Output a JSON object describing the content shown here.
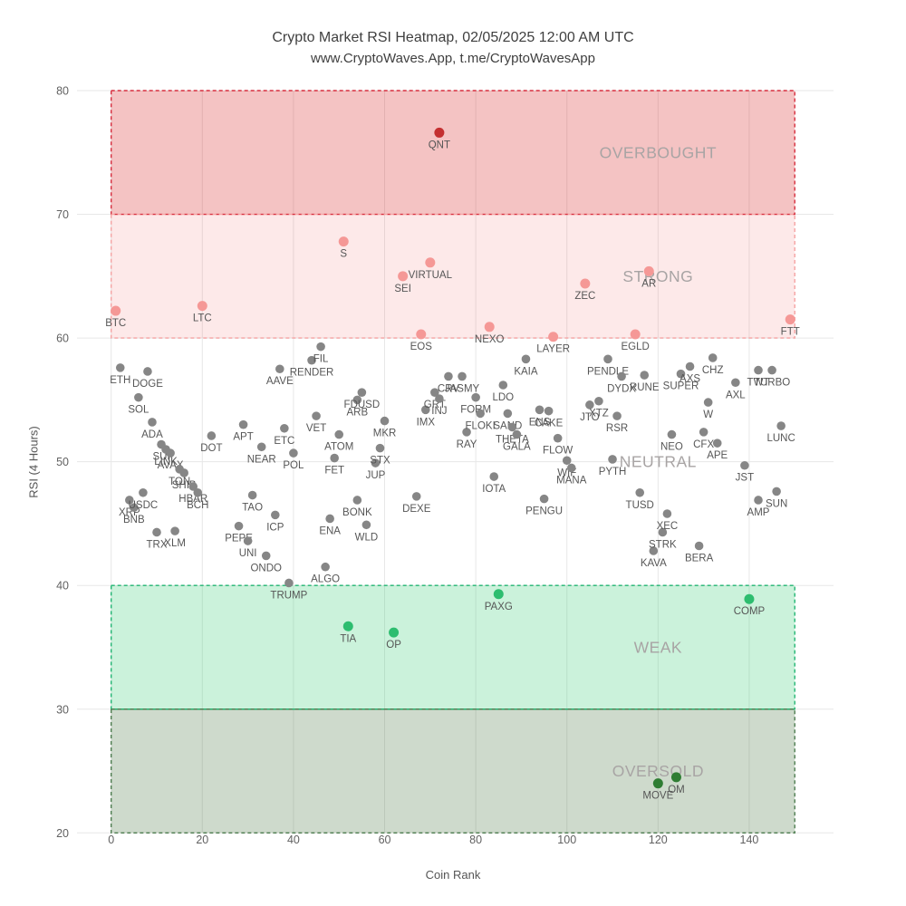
{
  "header": {
    "title": "Crypto Market RSI Heatmap, 02/05/2025 12:00 AM UTC",
    "subtitle": "www.CryptoWaves.App, t.me/CryptoWavesApp"
  },
  "chart_data": {
    "type": "scatter",
    "xlabel": "Coin Rank",
    "ylabel": "RSI (4 Hours)",
    "x_ticks": [
      0,
      20,
      40,
      60,
      80,
      100,
      120,
      140
    ],
    "y_ticks": [
      20,
      30,
      40,
      50,
      60,
      70,
      80
    ],
    "xlim": [
      -7.5,
      158.5
    ],
    "ylim": [
      18.7,
      80.4
    ],
    "grid": true,
    "grid_color": "#e7e7e7",
    "tick_color": "#616161",
    "point_label_color": "#565656",
    "zone_label_color": "#a8a4a4",
    "band_rank_range": [
      0,
      150
    ],
    "zone_label_rank": 120,
    "zones": [
      {
        "name": "overbought",
        "label": "OVERBOUGHT",
        "rsi_min": 70,
        "rsi_max": 80,
        "fill": "rgba(214,39,40,0.28)",
        "border": "#d62e3e",
        "point_color": "#c42f30"
      },
      {
        "name": "strong",
        "label": "STRONG",
        "rsi_min": 60,
        "rsi_max": 70,
        "fill": "rgba(240,100,100,0.14)",
        "border": "#f5a3a3",
        "point_color": "#f59896"
      },
      {
        "name": "neutral",
        "label": "NEUTRAL",
        "rsi_min": 40,
        "rsi_max": 60,
        "fill": "none",
        "border": "none",
        "point_color": "#868686"
      },
      {
        "name": "weak",
        "label": "WEAK",
        "rsi_min": 30,
        "rsi_max": 40,
        "fill": "rgba(46,204,113,0.25)",
        "border": "#22b573",
        "point_color": "#2dbd6f"
      },
      {
        "name": "oversold",
        "label": "OVERSOLD",
        "rsi_min": 20,
        "rsi_max": 30,
        "fill": "rgba(58,106,52,0.25)",
        "border": "#4e7d50",
        "point_color": "#2f7d33"
      }
    ],
    "points": [
      {
        "s": "BTC",
        "rank": 1,
        "rsi": 62.2
      },
      {
        "s": "ETH",
        "rank": 2,
        "rsi": 57.6
      },
      {
        "s": "XRP",
        "rank": 4,
        "rsi": 46.9
      },
      {
        "s": "BNB",
        "rank": 5,
        "rsi": 46.3
      },
      {
        "s": "SOL",
        "rank": 6,
        "rsi": 55.2
      },
      {
        "s": "USDC",
        "rank": 7,
        "rsi": 47.5
      },
      {
        "s": "DOGE",
        "rank": 8,
        "rsi": 57.3
      },
      {
        "s": "ADA",
        "rank": 9,
        "rsi": 53.2
      },
      {
        "s": "TRX",
        "rank": 10,
        "rsi": 44.3
      },
      {
        "s": "SUI",
        "rank": 11,
        "rsi": 51.4
      },
      {
        "s": "LINK",
        "rank": 12,
        "rsi": 51.0
      },
      {
        "s": "AVAX",
        "rank": 13,
        "rsi": 50.7
      },
      {
        "s": "XLM",
        "rank": 14,
        "rsi": 44.4
      },
      {
        "s": "TON",
        "rank": 15,
        "rsi": 49.4
      },
      {
        "s": "SHIB",
        "rank": 16,
        "rsi": 49.1
      },
      {
        "s": "HBAR",
        "rank": 18,
        "rsi": 48.0
      },
      {
        "s": "BCH",
        "rank": 19,
        "rsi": 47.5
      },
      {
        "s": "LTC",
        "rank": 20,
        "rsi": 62.6
      },
      {
        "s": "DOT",
        "rank": 22,
        "rsi": 52.1
      },
      {
        "s": "PEPE",
        "rank": 28,
        "rsi": 44.8
      },
      {
        "s": "APT",
        "rank": 29,
        "rsi": 53.0
      },
      {
        "s": "UNI",
        "rank": 30,
        "rsi": 43.6
      },
      {
        "s": "TAO",
        "rank": 31,
        "rsi": 47.3
      },
      {
        "s": "NEAR",
        "rank": 33,
        "rsi": 51.2
      },
      {
        "s": "ONDO",
        "rank": 34,
        "rsi": 42.4
      },
      {
        "s": "ICP",
        "rank": 36,
        "rsi": 45.7
      },
      {
        "s": "AAVE",
        "rank": 37,
        "rsi": 57.5
      },
      {
        "s": "ETC",
        "rank": 38,
        "rsi": 52.7
      },
      {
        "s": "TRUMP",
        "rank": 39,
        "rsi": 40.2
      },
      {
        "s": "POL",
        "rank": 40,
        "rsi": 50.7
      },
      {
        "s": "RENDER",
        "rank": 44,
        "rsi": 58.2
      },
      {
        "s": "VET",
        "rank": 45,
        "rsi": 53.7
      },
      {
        "s": "FIL",
        "rank": 46,
        "rsi": 59.3
      },
      {
        "s": "ALGO",
        "rank": 47,
        "rsi": 41.5
      },
      {
        "s": "ENA",
        "rank": 48,
        "rsi": 45.4
      },
      {
        "s": "FET",
        "rank": 49,
        "rsi": 50.3
      },
      {
        "s": "ATOM",
        "rank": 50,
        "rsi": 52.2
      },
      {
        "s": "S",
        "rank": 51,
        "rsi": 67.8
      },
      {
        "s": "TIA",
        "rank": 52,
        "rsi": 36.7
      },
      {
        "s": "ARB",
        "rank": 54,
        "rsi": 55.0
      },
      {
        "s": "BONK",
        "rank": 54,
        "rsi": 46.9
      },
      {
        "s": "FDUSD",
        "rank": 55,
        "rsi": 55.6
      },
      {
        "s": "WLD",
        "rank": 56,
        "rsi": 44.9
      },
      {
        "s": "JUP",
        "rank": 58,
        "rsi": 49.9
      },
      {
        "s": "STX",
        "rank": 59,
        "rsi": 51.1
      },
      {
        "s": "MKR",
        "rank": 60,
        "rsi": 53.3
      },
      {
        "s": "OP",
        "rank": 62,
        "rsi": 36.2
      },
      {
        "s": "SEI",
        "rank": 64,
        "rsi": 65.0
      },
      {
        "s": "DEXE",
        "rank": 67,
        "rsi": 47.2
      },
      {
        "s": "EOS",
        "rank": 68,
        "rsi": 60.3
      },
      {
        "s": "IMX",
        "rank": 69,
        "rsi": 54.2
      },
      {
        "s": "VIRTUAL",
        "rank": 70,
        "rsi": 66.1
      },
      {
        "s": "GRT",
        "rank": 71,
        "rsi": 55.6
      },
      {
        "s": "QNT",
        "rank": 72,
        "rsi": 76.6
      },
      {
        "s": "INJ",
        "rank": 72,
        "rsi": 55.1
      },
      {
        "s": "CRV",
        "rank": 74,
        "rsi": 56.9
      },
      {
        "s": "JASMY",
        "rank": 77,
        "rsi": 56.9
      },
      {
        "s": "RAY",
        "rank": 78,
        "rsi": 52.4
      },
      {
        "s": "FORM",
        "rank": 80,
        "rsi": 55.2
      },
      {
        "s": "FLOKI",
        "rank": 81,
        "rsi": 53.9
      },
      {
        "s": "NEXO",
        "rank": 83,
        "rsi": 60.9
      },
      {
        "s": "IOTA",
        "rank": 84,
        "rsi": 48.8
      },
      {
        "s": "PAXG",
        "rank": 85,
        "rsi": 39.3
      },
      {
        "s": "LDO",
        "rank": 86,
        "rsi": 56.2
      },
      {
        "s": "SAND",
        "rank": 87,
        "rsi": 53.9
      },
      {
        "s": "THETA",
        "rank": 88,
        "rsi": 52.8
      },
      {
        "s": "GALA",
        "rank": 89,
        "rsi": 52.2
      },
      {
        "s": "KAIA",
        "rank": 91,
        "rsi": 58.3
      },
      {
        "s": "ENS",
        "rank": 94,
        "rsi": 54.2
      },
      {
        "s": "PENGU",
        "rank": 95,
        "rsi": 47.0
      },
      {
        "s": "CAKE",
        "rank": 96,
        "rsi": 54.1
      },
      {
        "s": "LAYER",
        "rank": 97,
        "rsi": 60.1
      },
      {
        "s": "FLOW",
        "rank": 98,
        "rsi": 51.9
      },
      {
        "s": "WIF",
        "rank": 100,
        "rsi": 50.1
      },
      {
        "s": "MANA",
        "rank": 101,
        "rsi": 49.5
      },
      {
        "s": "ZEC",
        "rank": 104,
        "rsi": 64.4
      },
      {
        "s": "JTO",
        "rank": 105,
        "rsi": 54.6
      },
      {
        "s": "XTZ",
        "rank": 107,
        "rsi": 54.9
      },
      {
        "s": "PENDLE",
        "rank": 109,
        "rsi": 58.3
      },
      {
        "s": "PYTH",
        "rank": 110,
        "rsi": 50.2
      },
      {
        "s": "RSR",
        "rank": 111,
        "rsi": 53.7
      },
      {
        "s": "DYDX",
        "rank": 112,
        "rsi": 56.9
      },
      {
        "s": "EGLD",
        "rank": 115,
        "rsi": 60.3
      },
      {
        "s": "TUSD",
        "rank": 116,
        "rsi": 47.5
      },
      {
        "s": "RUNE",
        "rank": 117,
        "rsi": 57.0
      },
      {
        "s": "AR",
        "rank": 118,
        "rsi": 65.4
      },
      {
        "s": "KAVA",
        "rank": 119,
        "rsi": 42.8
      },
      {
        "s": "MOVE",
        "rank": 120,
        "rsi": 24.0
      },
      {
        "s": "STRK",
        "rank": 121,
        "rsi": 44.3
      },
      {
        "s": "XEC",
        "rank": 122,
        "rsi": 45.8
      },
      {
        "s": "NEO",
        "rank": 123,
        "rsi": 52.2
      },
      {
        "s": "OM",
        "rank": 124,
        "rsi": 24.5
      },
      {
        "s": "SUPER",
        "rank": 125,
        "rsi": 57.1
      },
      {
        "s": "AXS",
        "rank": 127,
        "rsi": 57.7
      },
      {
        "s": "BERA",
        "rank": 129,
        "rsi": 43.2
      },
      {
        "s": "CFX",
        "rank": 130,
        "rsi": 52.4
      },
      {
        "s": "W",
        "rank": 131,
        "rsi": 54.8
      },
      {
        "s": "CHZ",
        "rank": 132,
        "rsi": 58.4
      },
      {
        "s": "APE",
        "rank": 133,
        "rsi": 51.5
      },
      {
        "s": "AXL",
        "rank": 137,
        "rsi": 56.4
      },
      {
        "s": "JST",
        "rank": 139,
        "rsi": 49.7
      },
      {
        "s": "COMP",
        "rank": 140,
        "rsi": 38.9
      },
      {
        "s": "TWT",
        "rank": 142,
        "rsi": 57.4
      },
      {
        "s": "AMP",
        "rank": 142,
        "rsi": 46.9
      },
      {
        "s": "TURBO",
        "rank": 145,
        "rsi": 57.4
      },
      {
        "s": "SUN",
        "rank": 146,
        "rsi": 47.6
      },
      {
        "s": "LUNC",
        "rank": 147,
        "rsi": 52.9
      },
      {
        "s": "FTT",
        "rank": 149,
        "rsi": 61.5
      }
    ]
  }
}
